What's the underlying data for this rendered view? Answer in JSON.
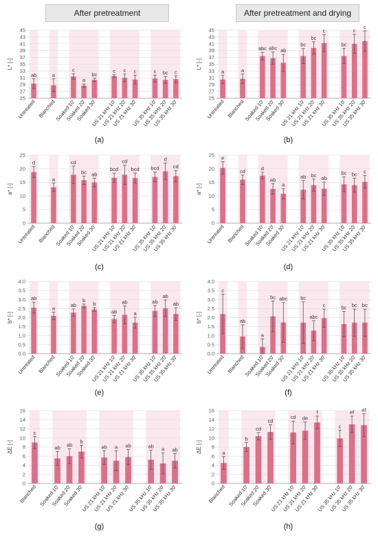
{
  "headers": {
    "left": "After pretreatment",
    "right": "After pretreatment and drying"
  },
  "colors": {
    "bar": "#d9718a",
    "band": "#fbe8ee",
    "error": "#555555",
    "grid": "#e0e0e0"
  },
  "chart_data": [
    {
      "panel": "(a)",
      "type": "bar",
      "ylabel": "L* [-]",
      "ylim": [
        25,
        45
      ],
      "yticks": [
        25,
        27,
        29,
        31,
        33,
        35,
        37,
        39,
        41,
        43,
        45
      ],
      "categories": [
        "Untreated",
        "Blanched",
        "Soaked 10'",
        "Soaked 20'",
        "Soaked 30'",
        "US 21 kHz 10'",
        "US 21 kHz 20'",
        "US 21 kHz 30'",
        "US 35 kHz 10'",
        "US 35 kHz 20'",
        "US 35 kHz 30'"
      ],
      "values": [
        29.3,
        28.8,
        31.4,
        28.7,
        30.4,
        31.5,
        31.0,
        30.5,
        30.8,
        30.4,
        30.6
      ],
      "errors": [
        1.4,
        1.9,
        0.8,
        0.5,
        0.5,
        0.4,
        1.1,
        1.3,
        1.0,
        1.0,
        1.0
      ],
      "letters": [
        "ab",
        "a",
        "c",
        "a",
        "bc",
        "c",
        "c",
        "c",
        "c",
        "bc",
        "c"
      ]
    },
    {
      "panel": "(b)",
      "type": "bar",
      "ylabel": "L* [-]",
      "ylim": [
        25,
        45
      ],
      "yticks": [
        25,
        27,
        29,
        31,
        33,
        35,
        37,
        39,
        41,
        43,
        45
      ],
      "categories": [
        "Untreated",
        "Blanched",
        "Soaked 10'",
        "Soaked 20'",
        "Soaked 30'",
        "US 21 kHz 10'",
        "US 21 kHz 20'",
        "US 21 kHz 30'",
        "US 35 kHz 10'",
        "US 35 kHz 20'",
        "US 35 kHz 30'"
      ],
      "values": [
        30.5,
        30.7,
        37.4,
        36.8,
        35.4,
        37.4,
        39.8,
        41.2,
        37.4,
        41.0,
        41.8
      ],
      "errors": [
        1.2,
        1.4,
        1.1,
        1.8,
        2.5,
        2.2,
        1.8,
        2.5,
        2.2,
        2.8,
        3.0
      ],
      "letters": [
        "a",
        "a",
        "abc",
        "abc",
        "ab",
        "bc",
        "bc",
        "c",
        "bc",
        "c",
        "c"
      ]
    },
    {
      "panel": "(c)",
      "type": "bar",
      "ylabel": "a* [-]",
      "ylim": [
        0,
        25
      ],
      "yticks": [
        0,
        5,
        10,
        15,
        20,
        25
      ],
      "categories": [
        "Untreated",
        "Blanched",
        "Soaked 10'",
        "Soaked 20'",
        "Soaked 30'",
        "US 21 kHz 10'",
        "US 21 kHz 20'",
        "US 21 kHz 30'",
        "US 35 kHz 10'",
        "US 35 kHz 20'",
        "US 35 kHz 30'"
      ],
      "values": [
        18.8,
        13.2,
        17.8,
        15.8,
        15.0,
        16.7,
        17.8,
        16.6,
        17.0,
        19.1,
        17.3
      ],
      "errors": [
        2.0,
        1.5,
        3.2,
        1.5,
        1.6,
        1.7,
        3.5,
        1.8,
        1.8,
        3.0,
        2.1
      ],
      "letters": [
        "d",
        "a",
        "cd",
        "bc",
        "ab",
        "bcd",
        "cd",
        "bcd",
        "bcd",
        "d",
        "cd"
      ]
    },
    {
      "panel": "(d)",
      "type": "bar",
      "ylabel": "a* [-]",
      "ylim": [
        0,
        25
      ],
      "yticks": [
        0,
        5,
        10,
        15,
        20,
        25
      ],
      "categories": [
        "Untreated",
        "Blanched",
        "Soaked 10'",
        "Soaked 20'",
        "Soaked 30'",
        "US 21 kHz 10'",
        "US 21 kHz 20'",
        "US 21 kHz 30'",
        "US 35 kHz 10'",
        "US 35 kHz 20'",
        "US 35 kHz 30'"
      ],
      "values": [
        20.3,
        16.0,
        17.5,
        12.6,
        10.8,
        12.3,
        14.0,
        12.7,
        14.3,
        14.0,
        15.2
      ],
      "errors": [
        2.3,
        1.7,
        1.2,
        1.9,
        1.9,
        3.4,
        2.2,
        2.4,
        2.7,
        2.6,
        2.3
      ],
      "letters": [
        "e",
        "cd",
        "d",
        "ab",
        "a",
        "ab",
        "bc",
        "ab",
        "bc",
        "bc",
        "c"
      ]
    },
    {
      "panel": "(e)",
      "type": "bar",
      "ylabel": "b* [-]",
      "ylim": [
        0,
        4
      ],
      "yticks": [
        0.0,
        0.5,
        1.0,
        1.5,
        2.0,
        2.5,
        3.0,
        3.5,
        4.0
      ],
      "categories": [
        "Untreated",
        "Blanched",
        "Soaked 10'",
        "Soaked 20'",
        "Soaked 30'",
        "US 21 kHz 10'",
        "US 21 kHz 20'",
        "US 21 kHz 30'",
        "US 35 kHz 10'",
        "US 35 kHz 20'",
        "US 35 kHz 30'"
      ],
      "values": [
        2.55,
        2.1,
        2.28,
        2.65,
        2.45,
        1.92,
        2.15,
        1.72,
        2.37,
        2.52,
        2.2
      ],
      "errors": [
        0.3,
        0.2,
        0.2,
        0.1,
        0.1,
        0.2,
        0.5,
        0.3,
        0.3,
        0.45,
        0.35
      ],
      "letters": [
        "ab",
        "a",
        "ab",
        "b",
        "b",
        "ab",
        "ab",
        "a",
        "ab",
        "ab",
        "ab"
      ]
    },
    {
      "panel": "(f)",
      "type": "bar",
      "ylabel": "b* [-]",
      "ylim": [
        0,
        4
      ],
      "yticks": [
        0.0,
        0.5,
        1.0,
        1.5,
        2.0,
        2.5,
        3.0,
        3.5,
        4.0
      ],
      "categories": [
        "Untreated",
        "Blanched",
        "Soaked 10'",
        "Soaked 20'",
        "Soaked 30'",
        "US 21 kHz 10'",
        "US 21 kHz 20'",
        "US 21 kHz 30'",
        "US 35 kHz 10'",
        "US 35 kHz 20'",
        "US 35 kHz 30'"
      ],
      "values": [
        2.2,
        0.95,
        0.37,
        2.07,
        1.73,
        1.72,
        1.28,
        1.97,
        1.64,
        1.72,
        1.72
      ],
      "errors": [
        1.1,
        0.65,
        0.45,
        0.85,
        1.1,
        1.15,
        0.55,
        0.5,
        0.7,
        0.75,
        0.75
      ],
      "letters": [
        "c",
        "ab",
        "a",
        "bc",
        "abc",
        "bc",
        "abc",
        "c",
        "bc",
        "bc",
        "bc"
      ]
    },
    {
      "panel": "(g)",
      "type": "bar",
      "ylabel": "ΔE [-]",
      "ylim": [
        0,
        16
      ],
      "yticks": [
        0,
        2,
        4,
        6,
        8,
        10,
        12,
        14,
        16
      ],
      "categories": [
        "Blanched",
        "Soaked 10'",
        "Soaked 20'",
        "Soaked 30'",
        "US 21 kHz 10'",
        "US 21 kHz 20'",
        "US 21 kHz 30'",
        "US 35 kHz 10'",
        "US 35 kHz 20'",
        "US 35 kHz 30'"
      ],
      "values": [
        9.0,
        5.5,
        6.0,
        7.0,
        5.7,
        5.0,
        5.8,
        5.2,
        4.4,
        5.0
      ],
      "errors": [
        1.3,
        1.5,
        1.6,
        1.4,
        1.5,
        2.2,
        1.7,
        2.1,
        2.3,
        1.6
      ],
      "letters": [
        "c",
        "ab",
        "ab",
        "b",
        "ab",
        "a",
        "ab",
        "ab",
        "a",
        "ab"
      ]
    },
    {
      "panel": "(h)",
      "type": "bar",
      "ylabel": "ΔE [-]",
      "ylim": [
        0,
        16
      ],
      "yticks": [
        0,
        2,
        4,
        6,
        8,
        10,
        12,
        14,
        16
      ],
      "categories": [
        "Blanched",
        "Soaked 10'",
        "Soaked 20'",
        "Soaked 30'",
        "US 21 kHz 10'",
        "US 21 kHz 20'",
        "US 21 kHz 30'",
        "US 35 kHz 10'",
        "US 35 kHz 20'",
        "US 35 kHz 30'"
      ],
      "values": [
        4.5,
        8.0,
        10.4,
        11.3,
        11.2,
        11.6,
        13.4,
        9.9,
        13.0,
        12.8
      ],
      "errors": [
        1.4,
        1.0,
        0.8,
        1.6,
        2.5,
        1.9,
        1.4,
        1.8,
        1.8,
        2.5
      ],
      "letters": [
        "a",
        "b",
        "cd",
        "cd",
        "cd",
        "de",
        "f",
        "c",
        "ef",
        "ef"
      ]
    }
  ]
}
